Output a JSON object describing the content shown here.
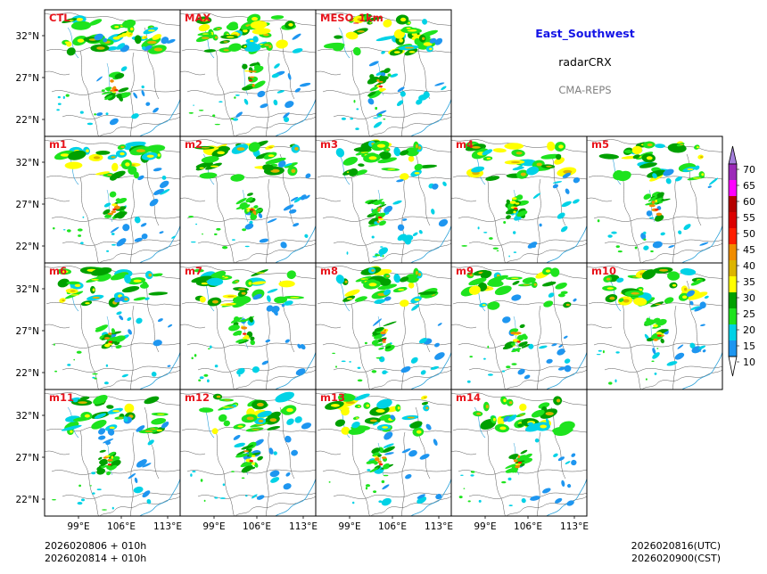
{
  "header": {
    "region": "East_Southwest",
    "variable": "radarCRX",
    "model": "CMA-REPS"
  },
  "panels": [
    {
      "label": "CTL"
    },
    {
      "label": "MAX"
    },
    {
      "label": "MESO_1km"
    },
    {
      "label": "m1"
    },
    {
      "label": "m2"
    },
    {
      "label": "m3"
    },
    {
      "label": "m4"
    },
    {
      "label": "m5"
    },
    {
      "label": "m6"
    },
    {
      "label": "m7"
    },
    {
      "label": "m8"
    },
    {
      "label": "m9"
    },
    {
      "label": "m10"
    },
    {
      "label": "m11"
    },
    {
      "label": "m12"
    },
    {
      "label": "m13"
    },
    {
      "label": "m14"
    }
  ],
  "axes": {
    "lat_ticks": [
      "32°N",
      "27°N",
      "22°N"
    ],
    "lon_ticks": [
      "99°E",
      "106°E",
      "113°E"
    ]
  },
  "colorbar": {
    "ticks": [
      "70",
      "65",
      "60",
      "55",
      "50",
      "45",
      "40",
      "35",
      "30",
      "25",
      "20",
      "15",
      "10"
    ],
    "colors": [
      "#9c2ab8",
      "#ff00ff",
      "#b40000",
      "#dc0000",
      "#ff1e00",
      "#f08c00",
      "#dcb400",
      "#ffff00",
      "#00a000",
      "#1ee31e",
      "#00d2e6",
      "#1e96f0"
    ],
    "under_color": "#ffffff",
    "over_color": "#a47fdc"
  },
  "footer": {
    "init_utc": "2026020806  +  010h",
    "init_cst": "2026020814  +  010h",
    "valid_utc": "2026020816(UTC)",
    "valid_cst": "2026020900(CST)"
  }
}
